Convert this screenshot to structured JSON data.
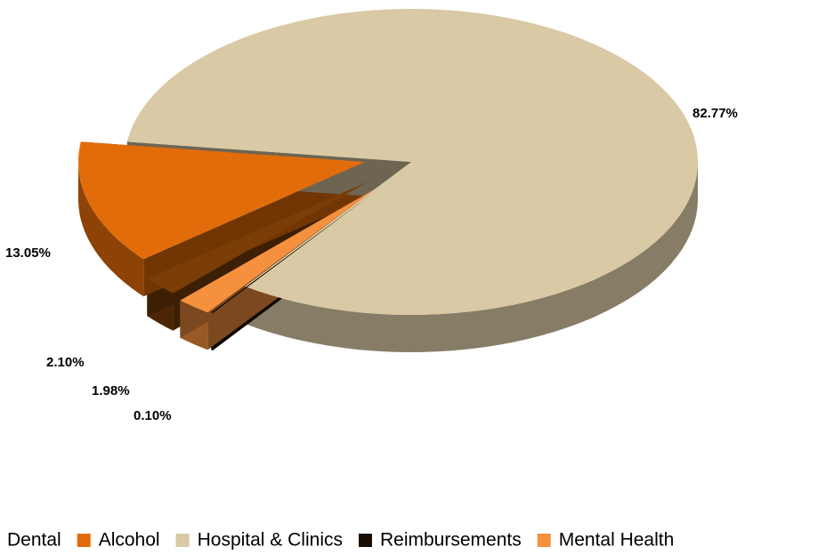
{
  "chart_data": {
    "type": "pie",
    "categories": [
      "Dental",
      "Alcohol",
      "Hospital & Clinics",
      "Reimbursements",
      "Mental Health"
    ],
    "values": [
      2.1,
      13.05,
      82.77,
      0.1,
      1.98
    ],
    "value_labels": [
      "2.10%",
      "13.05%",
      "82.77%",
      "0.10%",
      "1.98%"
    ],
    "colors": [
      "#7a3d06",
      "#e36c0a",
      "#d9c9a4",
      "#1a0d04",
      "#f5903e"
    ],
    "legend": "bottom"
  }
}
